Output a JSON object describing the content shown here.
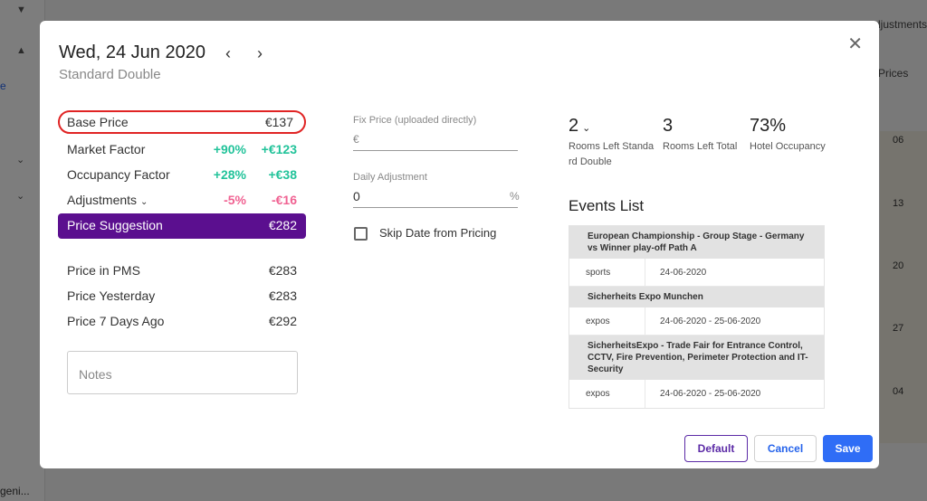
{
  "background": {
    "top_right_text": "djustments",
    "prices_tab": "Prices",
    "sidebar_link": "e",
    "footer_text": "geni...",
    "row_numbers": [
      "06",
      "13",
      "20",
      "27",
      "04"
    ]
  },
  "header": {
    "date": "Wed, 24 Jun 2020",
    "room_type": "Standard Double",
    "prev_icon": "chevron-left-icon",
    "next_icon": "chevron-right-icon",
    "close_icon": "close-icon"
  },
  "prices": {
    "base_price": {
      "label": "Base Price",
      "value": "€137"
    },
    "market_factor": {
      "label": "Market Factor",
      "pct": "+90%",
      "value": "+€123"
    },
    "occupancy_factor": {
      "label": "Occupancy Factor",
      "pct": "+28%",
      "value": "+€38"
    },
    "adjustments": {
      "label": "Adjustments",
      "pct": "-5%",
      "value": "-€16"
    },
    "price_suggestion": {
      "label": "Price Suggestion",
      "value": "€282"
    },
    "price_in_pms": {
      "label": "Price in PMS",
      "value": "€283"
    },
    "price_yesterday": {
      "label": "Price Yesterday",
      "value": "€283"
    },
    "price_7_days": {
      "label": "Price 7 Days Ago",
      "value": "€292"
    }
  },
  "notes": {
    "placeholder": "Notes"
  },
  "fix_price": {
    "label": "Fix Price (uploaded directly)",
    "prefix": "€",
    "value": ""
  },
  "daily_adjustment": {
    "label": "Daily Adjustment",
    "value": "0",
    "suffix": "%"
  },
  "skip_date": {
    "label": "Skip Date from Pricing",
    "checked": false
  },
  "stats": {
    "rooms_left_type": {
      "value": "2",
      "label_line1": "Rooms Left Standa",
      "label_line2": "rd Double"
    },
    "rooms_left_total": {
      "value": "3",
      "label": "Rooms Left Total"
    },
    "hotel_occupancy": {
      "value": "73%",
      "label": "Hotel Occupancy"
    }
  },
  "events": {
    "title": "Events List",
    "items": [
      {
        "name": "European Championship - Group Stage - Germany vs Winner play-off Path A",
        "category": "sports",
        "date": "24-06-2020"
      },
      {
        "name": "Sicherheits Expo Munchen",
        "category": "expos",
        "date": "24-06-2020 - 25-06-2020"
      },
      {
        "name": "SicherheitsExpo - Trade Fair for Entrance Control, CCTV, Fire Prevention, Perimeter Protection and IT-Security",
        "category": "expos",
        "date": "24-06-2020 - 25-06-2020"
      }
    ]
  },
  "buttons": {
    "default": "Default",
    "cancel": "Cancel",
    "save": "Save"
  },
  "colors": {
    "suggestion_bg": "#5b0f8f",
    "positive": "#22c39a",
    "negative": "#f06292",
    "primary": "#2f6df6",
    "highlight_border": "#e02424"
  }
}
